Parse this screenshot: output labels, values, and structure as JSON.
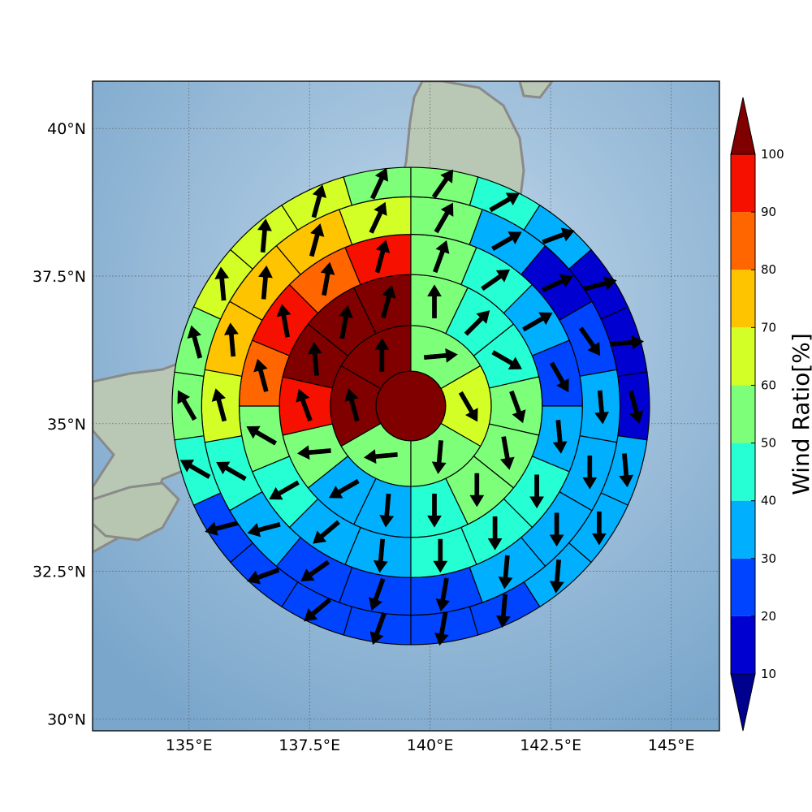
{
  "chart_data": {
    "type": "polar-sector-map",
    "title": "",
    "xlabel": "",
    "ylabel": "",
    "center": {
      "lon": 139.6,
      "lat": 35.3
    },
    "map_extent": {
      "lon": [
        133.0,
        146.0
      ],
      "lat": [
        29.8,
        40.8
      ]
    },
    "grid": true,
    "x_ticks": [
      "135°E",
      "137.5°E",
      "140°E",
      "142.5°E",
      "145°E"
    ],
    "x_tick_values": [
      135.0,
      137.5,
      140.0,
      142.5,
      145.0
    ],
    "y_ticks": [
      "40°N",
      "37.5°N",
      "35°N",
      "32.5°N",
      "30°N"
    ],
    "y_tick_values": [
      40.0,
      37.5,
      35.0,
      32.5,
      30.0
    ],
    "ring_edges_deg": [
      0.0,
      0.65,
      1.5,
      2.45,
      3.2,
      3.9,
      4.45
    ],
    "colorbar": {
      "label": "Wind Ratio[%]",
      "ticks": [
        "10",
        "20",
        "30",
        "40",
        "50",
        "60",
        "70",
        "80",
        "90",
        "100"
      ],
      "tick_values": [
        10,
        20,
        30,
        40,
        50,
        60,
        70,
        80,
        90,
        100
      ],
      "extend": "both",
      "colors": [
        "#0000d0",
        "#0044ff",
        "#00b0ff",
        "#26ffd4",
        "#7dff7a",
        "#d4ff26",
        "#ffc400",
        "#ff6600",
        "#f51000"
      ],
      "under_color": "#00008f",
      "over_color": "#800000"
    },
    "rings": [
      {
        "ring": 0,
        "sectors": [
          {
            "value": 105,
            "arrow_dir": 0
          }
        ]
      },
      {
        "ring": 1,
        "sectors": [
          {
            "value": 55,
            "arrow_dir": 85
          },
          {
            "value": 62,
            "arrow_dir": 150
          },
          {
            "value": 55,
            "arrow_dir": 185
          },
          {
            "value": 55,
            "arrow_dir": 265
          },
          {
            "value": 105,
            "arrow_dir": 345
          },
          {
            "value": 105,
            "arrow_dir": 0
          }
        ]
      },
      {
        "ring": 2,
        "sectors": [
          {
            "value": 55,
            "arrow_dir": 0
          },
          {
            "value": 45,
            "arrow_dir": 45
          },
          {
            "value": 45,
            "arrow_dir": 120
          },
          {
            "value": 55,
            "arrow_dir": 160
          },
          {
            "value": 55,
            "arrow_dir": 170
          },
          {
            "value": 55,
            "arrow_dir": 180
          },
          {
            "value": 45,
            "arrow_dir": 180
          },
          {
            "value": 35,
            "arrow_dir": 185
          },
          {
            "value": 35,
            "arrow_dir": 240
          },
          {
            "value": 55,
            "arrow_dir": 265
          },
          {
            "value": 95,
            "arrow_dir": 340
          },
          {
            "value": 105,
            "arrow_dir": 355
          },
          {
            "value": 105,
            "arrow_dir": 10
          },
          {
            "value": 105,
            "arrow_dir": 15
          }
        ]
      },
      {
        "ring": 3,
        "sectors": [
          {
            "value": 55,
            "arrow_dir": 20
          },
          {
            "value": 45,
            "arrow_dir": 55
          },
          {
            "value": 35,
            "arrow_dir": 60
          },
          {
            "value": 25,
            "arrow_dir": 150
          },
          {
            "value": 35,
            "arrow_dir": 175
          },
          {
            "value": 45,
            "arrow_dir": 180
          },
          {
            "value": 45,
            "arrow_dir": 180
          },
          {
            "value": 45,
            "arrow_dir": 180
          },
          {
            "value": 35,
            "arrow_dir": 185
          },
          {
            "value": 35,
            "arrow_dir": 230
          },
          {
            "value": 45,
            "arrow_dir": 240
          },
          {
            "value": 55,
            "arrow_dir": 300
          },
          {
            "value": 85,
            "arrow_dir": 345
          },
          {
            "value": 95,
            "arrow_dir": 350
          },
          {
            "value": 85,
            "arrow_dir": 10
          },
          {
            "value": 95,
            "arrow_dir": 15
          }
        ]
      },
      {
        "ring": 4,
        "sectors": [
          {
            "value": 55,
            "arrow_dir": 30
          },
          {
            "value": 35,
            "arrow_dir": 60
          },
          {
            "value": 15,
            "arrow_dir": 65
          },
          {
            "value": 25,
            "arrow_dir": 145
          },
          {
            "value": 35,
            "arrow_dir": 175
          },
          {
            "value": 35,
            "arrow_dir": 180
          },
          {
            "value": 35,
            "arrow_dir": 180
          },
          {
            "value": 35,
            "arrow_dir": 185
          },
          {
            "value": 25,
            "arrow_dir": 190
          },
          {
            "value": 25,
            "arrow_dir": 200
          },
          {
            "value": 25,
            "arrow_dir": 235
          },
          {
            "value": 35,
            "arrow_dir": 255
          },
          {
            "value": 45,
            "arrow_dir": 300
          },
          {
            "value": 65,
            "arrow_dir": 345
          },
          {
            "value": 75,
            "arrow_dir": 355
          },
          {
            "value": 75,
            "arrow_dir": 5
          },
          {
            "value": 75,
            "arrow_dir": 15
          },
          {
            "value": 65,
            "arrow_dir": 25
          }
        ]
      },
      {
        "ring": 5,
        "sectors": [
          {
            "value": 55,
            "arrow_dir": 35
          },
          {
            "value": 45,
            "arrow_dir": 60
          },
          {
            "value": 35,
            "arrow_dir": 70
          },
          {
            "value": 15,
            "arrow_dir": 75
          },
          {
            "value": 15,
            "arrow_dir": 85
          },
          {
            "value": 15,
            "arrow_dir": 165
          },
          {
            "value": 35,
            "arrow_dir": 175
          },
          {
            "value": 35,
            "arrow_dir": 180
          },
          {
            "value": 35,
            "arrow_dir": 185
          },
          {
            "value": 25,
            "arrow_dir": 185
          },
          {
            "value": 25,
            "arrow_dir": 190
          },
          {
            "value": 25,
            "arrow_dir": 200
          },
          {
            "value": 25,
            "arrow_dir": 230
          },
          {
            "value": 25,
            "arrow_dir": 250
          },
          {
            "value": 25,
            "arrow_dir": 255
          },
          {
            "value": 45,
            "arrow_dir": 300
          },
          {
            "value": 55,
            "arrow_dir": 330
          },
          {
            "value": 55,
            "arrow_dir": 345
          },
          {
            "value": 65,
            "arrow_dir": 355
          },
          {
            "value": 65,
            "arrow_dir": 5
          },
          {
            "value": 65,
            "arrow_dir": 15
          },
          {
            "value": 55,
            "arrow_dir": 25
          }
        ]
      }
    ]
  }
}
